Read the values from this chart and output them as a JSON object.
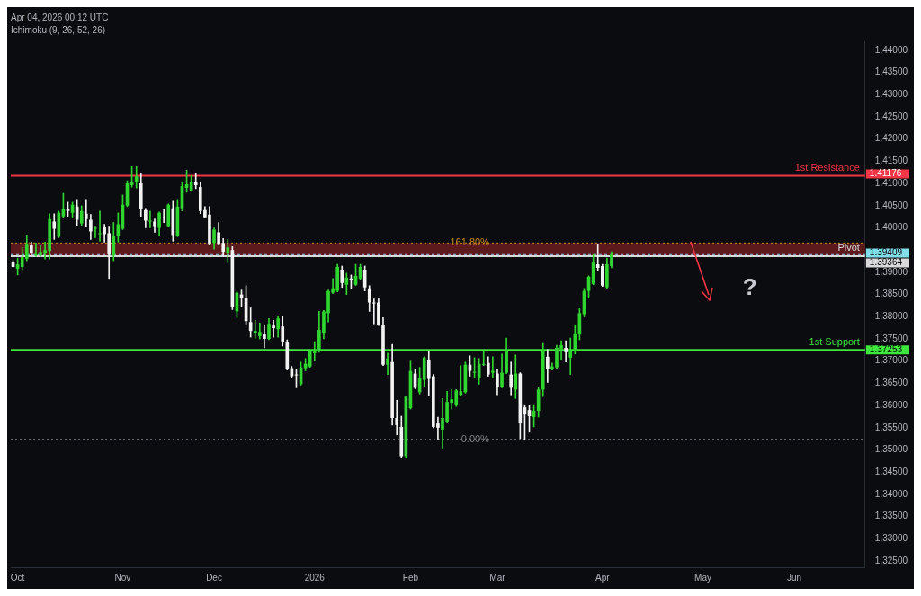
{
  "chart_data": {
    "type": "candlestick",
    "title": "Apr 04, 2026 00:12 UTC",
    "subtitle": "Ichimoku (9, 26, 52, 26)",
    "categories": [
      null,
      "Oct",
      null,
      null,
      null,
      null,
      null,
      null,
      null,
      null,
      null,
      null,
      null,
      null,
      null,
      null,
      null,
      null,
      null,
      null,
      null,
      null,
      null,
      null,
      "Nov",
      null,
      null,
      null,
      null,
      null,
      null,
      null,
      null,
      null,
      null,
      null,
      null,
      null,
      null,
      null,
      null,
      null,
      null,
      null,
      "Dec",
      null,
      null,
      null,
      null,
      null,
      null,
      null,
      null,
      null,
      null,
      null,
      null,
      null,
      null,
      null,
      null,
      null,
      null,
      null,
      null,
      null,
      "2026",
      null,
      null,
      null,
      null,
      null,
      null,
      null,
      null,
      null,
      null,
      null,
      null,
      null,
      null,
      null,
      null,
      null,
      null,
      null,
      null,
      "Feb",
      null,
      null,
      null,
      null,
      null,
      null,
      null,
      null,
      null,
      null,
      null,
      null,
      null,
      null,
      null,
      null,
      null,
      null,
      "Mar",
      null,
      null,
      null,
      null,
      null,
      null,
      null,
      null,
      null,
      null,
      null,
      null,
      null,
      null,
      null,
      null,
      null,
      null,
      null,
      null,
      null,
      null,
      "Apr",
      null,
      null,
      null,
      null,
      null,
      null,
      null,
      null,
      null,
      null,
      null,
      null,
      null,
      null,
      null,
      null,
      null,
      null,
      null,
      null,
      null,
      "May",
      null,
      null,
      null,
      null,
      null,
      null,
      null,
      null,
      null,
      null,
      null,
      null,
      null,
      null,
      null,
      null,
      null,
      null,
      null,
      "Jun",
      null,
      null,
      null,
      null,
      null,
      null,
      null,
      null,
      null,
      null,
      null,
      null,
      null,
      null,
      null
    ],
    "ohlc": [
      [
        1.3924,
        1.3926,
        1.3912,
        1.3912
      ],
      [
        1.3908,
        1.3932,
        1.3894,
        1.3918
      ],
      [
        1.3912,
        1.3956,
        1.3906,
        1.3934
      ],
      [
        1.393,
        1.3984,
        1.3926,
        1.3964
      ],
      [
        1.3962,
        1.3968,
        1.3938,
        1.3944
      ],
      [
        1.3938,
        1.3966,
        1.3936,
        1.3942
      ],
      [
        1.3938,
        1.396,
        1.3936,
        1.3946
      ],
      [
        1.3944,
        1.3968,
        1.393,
        1.395
      ],
      [
        1.3948,
        1.4032,
        1.393,
        1.402
      ],
      [
        1.4014,
        1.4032,
        1.3974,
        1.3998
      ],
      [
        1.398,
        1.4038,
        1.3978,
        1.4034
      ],
      [
        1.4026,
        1.4078,
        1.4024,
        1.4042
      ],
      [
        1.4042,
        1.4058,
        1.4026,
        1.4038
      ],
      [
        1.4034,
        1.4058,
        1.4022,
        1.4052
      ],
      [
        1.4048,
        1.4064,
        1.4006,
        1.4018
      ],
      [
        1.401,
        1.405,
        1.4006,
        1.4038
      ],
      [
        1.4032,
        1.4064,
        1.4002,
        1.402
      ],
      [
        1.4018,
        1.403,
        1.3974,
        1.3992
      ],
      [
        1.3998,
        1.4004,
        1.3978,
        1.4
      ],
      [
        1.3986,
        1.4038,
        1.397,
        1.3988
      ],
      [
        1.4002,
        1.4008,
        1.3968,
        1.3986
      ],
      [
        1.3988,
        1.4004,
        1.3886,
        1.3942
      ],
      [
        1.3938,
        1.4012,
        1.3926,
        1.3982
      ],
      [
        1.3982,
        1.4034,
        1.3968,
        1.4008
      ],
      [
        1.3998,
        1.4074,
        1.3996,
        1.4052
      ],
      [
        1.405,
        1.4106,
        1.4048,
        1.41
      ],
      [
        1.4096,
        1.4138,
        1.4092,
        1.4104
      ],
      [
        1.4102,
        1.4138,
        1.409,
        1.4116
      ],
      [
        1.41,
        1.4124,
        1.4026,
        1.4042
      ],
      [
        1.404,
        1.4044,
        1.4,
        1.4016
      ],
      [
        1.4014,
        1.4038,
        1.4,
        1.4016
      ],
      [
        1.4014,
        1.402,
        1.399,
        1.4004
      ],
      [
        1.4,
        1.4036,
        1.3982,
        1.4034
      ],
      [
        1.4024,
        1.4042,
        1.4012,
        1.4022
      ],
      [
        1.4004,
        1.4054,
        1.4002,
        1.4052
      ],
      [
        1.4044,
        1.406,
        1.397,
        1.3984
      ],
      [
        1.3982,
        1.4064,
        1.398,
        1.4048
      ],
      [
        1.4044,
        1.4104,
        1.4038,
        1.4094
      ],
      [
        1.409,
        1.413,
        1.408,
        1.4098
      ],
      [
        1.4084,
        1.4118,
        1.4082,
        1.4102
      ],
      [
        1.4104,
        1.4122,
        1.4088,
        1.4096
      ],
      [
        1.4092,
        1.4102,
        1.4032,
        1.4038
      ],
      [
        1.404,
        1.4048,
        1.4022,
        1.4024
      ],
      [
        1.403,
        1.4048,
        1.3962,
        1.3964
      ],
      [
        1.3966,
        1.4,
        1.3952,
        1.3996
      ],
      [
        1.399,
        1.4012,
        1.3962,
        1.3964
      ],
      [
        1.3966,
        1.3976,
        1.3936,
        1.3946
      ],
      [
        1.3944,
        1.3974,
        1.3922,
        1.3956
      ],
      [
        1.395,
        1.3958,
        1.3816,
        1.3822
      ],
      [
        1.3812,
        1.3856,
        1.3798,
        1.3854
      ],
      [
        1.385,
        1.386,
        1.3822,
        1.3842
      ],
      [
        1.3842,
        1.387,
        1.3782,
        1.379
      ],
      [
        1.3788,
        1.382,
        1.3754,
        1.3768
      ],
      [
        1.3764,
        1.3792,
        1.3752,
        1.3768
      ],
      [
        1.3756,
        1.3786,
        1.375,
        1.3766
      ],
      [
        1.3762,
        1.378,
        1.373,
        1.375
      ],
      [
        1.375,
        1.3796,
        1.3748,
        1.3784
      ],
      [
        1.378,
        1.3792,
        1.3754,
        1.3774
      ],
      [
        1.3772,
        1.3802,
        1.3754,
        1.3796
      ],
      [
        1.3778,
        1.38,
        1.3734,
        1.3744
      ],
      [
        1.3744,
        1.3748,
        1.368,
        1.3682
      ],
      [
        1.3684,
        1.3688,
        1.3662,
        1.3666
      ],
      [
        1.367,
        1.3682,
        1.364,
        1.3668
      ],
      [
        1.3648,
        1.3698,
        1.3646,
        1.3686
      ],
      [
        1.3684,
        1.3706,
        1.3678,
        1.3694
      ],
      [
        1.3688,
        1.3726,
        1.3686,
        1.3722
      ],
      [
        1.3718,
        1.3744,
        1.37,
        1.3726
      ],
      [
        1.3722,
        1.3812,
        1.372,
        1.377
      ],
      [
        1.3764,
        1.3814,
        1.375,
        1.3812
      ],
      [
        1.3808,
        1.386,
        1.3788,
        1.3858
      ],
      [
        1.3854,
        1.3886,
        1.3852,
        1.3864
      ],
      [
        1.3858,
        1.3918,
        1.3856,
        1.3912
      ],
      [
        1.3906,
        1.3914,
        1.3866,
        1.3876
      ],
      [
        1.3872,
        1.3898,
        1.385,
        1.3888
      ],
      [
        1.3886,
        1.3894,
        1.3864,
        1.3882
      ],
      [
        1.3872,
        1.3918,
        1.387,
        1.3892
      ],
      [
        1.3886,
        1.3918,
        1.3884,
        1.3912
      ],
      [
        1.3906,
        1.3914,
        1.3858,
        1.3866
      ],
      [
        1.3864,
        1.387,
        1.3812,
        1.3832
      ],
      [
        1.3832,
        1.384,
        1.3784,
        1.383
      ],
      [
        1.3832,
        1.3842,
        1.378,
        1.3782
      ],
      [
        1.3782,
        1.3798,
        1.369,
        1.3692
      ],
      [
        1.3692,
        1.3718,
        1.367,
        1.3706
      ],
      [
        1.3698,
        1.3738,
        1.3556,
        1.3572
      ],
      [
        1.3572,
        1.3612,
        1.3534,
        1.3556
      ],
      [
        1.3552,
        1.3576,
        1.3482,
        1.3486
      ],
      [
        1.3486,
        1.3622,
        1.3482,
        1.362
      ],
      [
        1.3594,
        1.37,
        1.3592,
        1.3678
      ],
      [
        1.3672,
        1.3682,
        1.3638,
        1.364
      ],
      [
        1.363,
        1.3686,
        1.3626,
        1.3662
      ],
      [
        1.3658,
        1.371,
        1.3642,
        1.3708
      ],
      [
        1.3702,
        1.3722,
        1.3622,
        1.366
      ],
      [
        1.3666,
        1.367,
        1.355,
        1.3552
      ],
      [
        1.3562,
        1.3574,
        1.3522,
        1.355
      ],
      [
        1.3546,
        1.3616,
        1.3502,
        1.3572
      ],
      [
        1.3564,
        1.3632,
        1.3562,
        1.3608
      ],
      [
        1.3606,
        1.3636,
        1.3592,
        1.3614
      ],
      [
        1.36,
        1.3636,
        1.3598,
        1.3634
      ],
      [
        1.3624,
        1.369,
        1.3622,
        1.3632
      ],
      [
        1.363,
        1.3698,
        1.3628,
        1.3692
      ],
      [
        1.3692,
        1.3712,
        1.3666,
        1.3678
      ],
      [
        1.3674,
        1.3708,
        1.3662,
        1.3676
      ],
      [
        1.3662,
        1.3706,
        1.3648,
        1.3694
      ],
      [
        1.3692,
        1.3722,
        1.369,
        1.3694
      ],
      [
        1.3696,
        1.371,
        1.3666,
        1.367
      ],
      [
        1.3674,
        1.371,
        1.3662,
        1.3678
      ],
      [
        1.3672,
        1.3682,
        1.3624,
        1.3642
      ],
      [
        1.3642,
        1.3716,
        1.364,
        1.3674
      ],
      [
        1.3674,
        1.3752,
        1.3672,
        1.3722
      ],
      [
        1.367,
        1.3698,
        1.3624,
        1.364
      ],
      [
        1.3636,
        1.3714,
        1.3616,
        1.3672
      ],
      [
        1.3672,
        1.3674,
        1.3526,
        1.3562
      ],
      [
        1.3596,
        1.3602,
        1.3524,
        1.3582
      ],
      [
        1.359,
        1.36,
        1.354,
        1.3576
      ],
      [
        1.3574,
        1.3602,
        1.3552,
        1.3588
      ],
      [
        1.3588,
        1.364,
        1.3574,
        1.3636
      ],
      [
        1.3636,
        1.374,
        1.362,
        1.3722
      ],
      [
        1.371,
        1.3726,
        1.3652,
        1.3682
      ],
      [
        1.3682,
        1.3696,
        1.368,
        1.3688
      ],
      [
        1.3686,
        1.3736,
        1.3684,
        1.373
      ],
      [
        1.3728,
        1.3746,
        1.3702,
        1.3736
      ],
      [
        1.373,
        1.3746,
        1.3698,
        1.372
      ],
      [
        1.3708,
        1.3752,
        1.367,
        1.3724
      ],
      [
        1.3724,
        1.3782,
        1.3716,
        1.3762
      ],
      [
        1.376,
        1.3818,
        1.3748,
        1.3808
      ],
      [
        1.3806,
        1.3864,
        1.38,
        1.3858
      ],
      [
        1.3858,
        1.3892,
        1.3842,
        1.389
      ],
      [
        1.3874,
        1.3942,
        1.3872,
        1.3922
      ],
      [
        1.3918,
        1.3964,
        1.3904,
        1.391
      ],
      [
        1.3914,
        1.3918,
        1.3868,
        1.387
      ],
      [
        1.3866,
        1.3932,
        1.3864,
        1.3918
      ],
      [
        1.3914,
        1.3946,
        1.391,
        1.3941
      ],
      null,
      null,
      null,
      null,
      null,
      null,
      null,
      null,
      null,
      null,
      null,
      null,
      null,
      null,
      null,
      null,
      null,
      null,
      null,
      null,
      null,
      null,
      null,
      null,
      null,
      null,
      null,
      null,
      null,
      null,
      null,
      null,
      null,
      null,
      null,
      null,
      null,
      null,
      null,
      null,
      null,
      null,
      null,
      null,
      null,
      null,
      null,
      null,
      null,
      null,
      null,
      null,
      null,
      null,
      null
    ],
    "ylim": [
      1.3236,
      1.442
    ],
    "yticks": [
      {
        "value": 1.325,
        "label": "1.32500"
      },
      {
        "value": 1.33,
        "label": "1.33000"
      },
      {
        "value": 1.335,
        "label": "1.33500"
      },
      {
        "value": 1.34,
        "label": "1.34000"
      },
      {
        "value": 1.345,
        "label": "1.34500"
      },
      {
        "value": 1.35,
        "label": "1.35000"
      },
      {
        "value": 1.355,
        "label": "1.35500"
      },
      {
        "value": 1.36,
        "label": "1.36000"
      },
      {
        "value": 1.365,
        "label": "1.36500"
      },
      {
        "value": 1.37,
        "label": "1.37000"
      },
      {
        "value": 1.375,
        "label": "1.37500"
      },
      {
        "value": 1.38,
        "label": "1.38000"
      },
      {
        "value": 1.385,
        "label": "1.38500"
      },
      {
        "value": 1.39,
        "label": "1.39000"
      },
      {
        "value": 1.4,
        "label": "1.40000"
      },
      {
        "value": 1.405,
        "label": "1.40500"
      },
      {
        "value": 1.41,
        "label": "1.41000"
      },
      {
        "value": 1.415,
        "label": "1.41500"
      },
      {
        "value": 1.42,
        "label": "1.42000"
      },
      {
        "value": 1.425,
        "label": "1.42500"
      },
      {
        "value": 1.43,
        "label": "1.43000"
      },
      {
        "value": 1.435,
        "label": "1.43500"
      },
      {
        "value": 1.44,
        "label": "1.44000"
      }
    ],
    "bands": [
      {
        "axis": "y",
        "from": 1.3938,
        "to": 1.3966,
        "color": "#5c1a1c"
      }
    ],
    "ref_lines": [
      {
        "axis": "y",
        "value": 1.41176,
        "label": "1st Resistance",
        "color": "#f23645"
      },
      {
        "axis": "y",
        "value": 1.39364,
        "label": "Pivot",
        "color": "#d9d9dc"
      },
      {
        "axis": "y",
        "value": 1.37253,
        "label": "1st Support",
        "color": "#3ee63e"
      },
      {
        "axis": "y",
        "value": 1.3966,
        "label": null,
        "color": "#c88a1a",
        "line_style": "dotted"
      },
      {
        "axis": "y",
        "value": 1.3524,
        "label": null,
        "color": "#787b86",
        "line_style": "dotted"
      },
      {
        "axis": "y",
        "value": 1.39409,
        "label": null,
        "color": "#80deea",
        "line_style": "dashed"
      }
    ],
    "annotations": [
      "1.41176",
      "1.39364",
      "1.37253",
      "1.39409",
      "161.80%",
      "0.00%",
      "?"
    ]
  }
}
